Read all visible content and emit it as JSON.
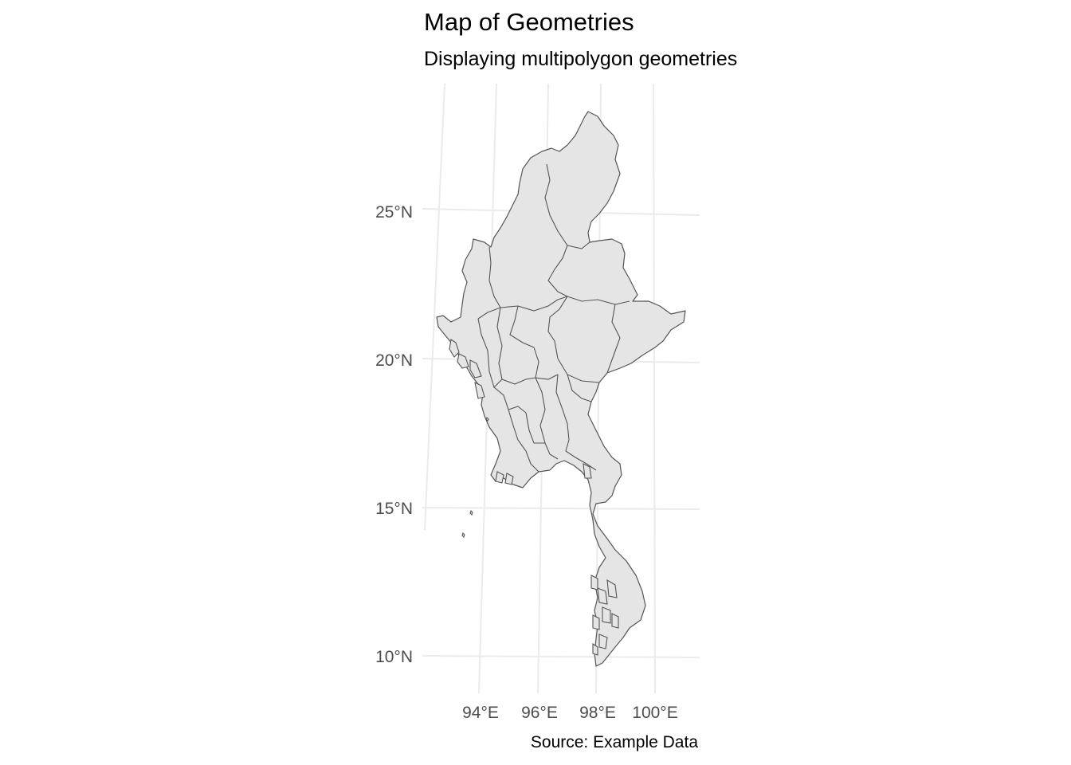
{
  "map": {
    "title": "Map of Geometries",
    "subtitle": "Displaying multipolygon geometries",
    "caption": "Source: Example Data",
    "fill_color": "#e5e5e5",
    "stroke_color": "#555555",
    "grid_color": "#ebebeb",
    "lat_labels": [
      "25°N",
      "20°N",
      "15°N",
      "10°N"
    ],
    "lon_labels": [
      "94°E",
      "96°E",
      "98°E",
      "100°E"
    ]
  }
}
